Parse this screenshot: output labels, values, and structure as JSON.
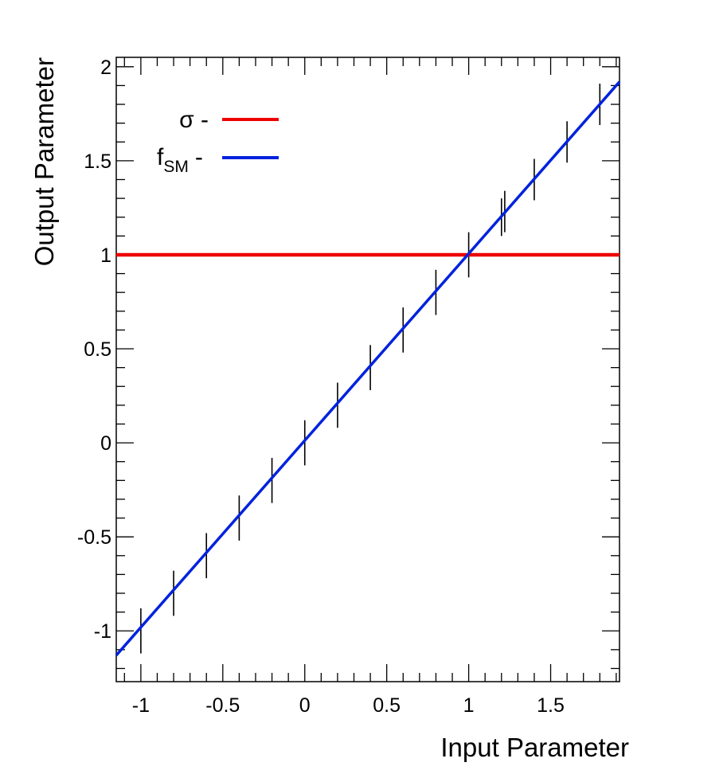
{
  "chart_data": {
    "type": "line",
    "xlabel": "Input Parameter",
    "ylabel": "Output Parameter",
    "xlim": [
      -1.15,
      1.92
    ],
    "ylim": [
      -1.27,
      2.05
    ],
    "x_ticks": [
      -1,
      -0.5,
      0,
      0.5,
      1,
      1.5
    ],
    "x_tick_labels": [
      "-1",
      "-0.5",
      "0",
      "0.5",
      "1",
      "1.5"
    ],
    "y_ticks": [
      -1,
      -0.5,
      0,
      0.5,
      1,
      1.5,
      2
    ],
    "y_tick_labels": [
      "-1",
      "-0.5",
      "0",
      "0.5",
      "1",
      "1.5",
      "2"
    ],
    "grid": false,
    "legend_position": "top-left",
    "series": [
      {
        "name": "σ",
        "color": "#ee0000",
        "x": [
          -1.15,
          1.92
        ],
        "y": [
          1.0,
          1.0
        ]
      },
      {
        "name_main": "f",
        "name_sub": "SM",
        "color": "#0022dd",
        "x": [
          -1.15,
          1.92
        ],
        "y": [
          -1.13,
          1.92
        ]
      }
    ],
    "error_bars": {
      "color": "#000000",
      "points": [
        {
          "x": -1.0,
          "y": -1.0,
          "err": 0.12
        },
        {
          "x": -0.8,
          "y": -0.8,
          "err": 0.12
        },
        {
          "x": -0.6,
          "y": -0.6,
          "err": 0.12
        },
        {
          "x": -0.4,
          "y": -0.4,
          "err": 0.12
        },
        {
          "x": -0.2,
          "y": -0.2,
          "err": 0.12
        },
        {
          "x": 0.0,
          "y": 0.0,
          "err": 0.12
        },
        {
          "x": 0.2,
          "y": 0.2,
          "err": 0.12
        },
        {
          "x": 0.4,
          "y": 0.4,
          "err": 0.12
        },
        {
          "x": 0.6,
          "y": 0.6,
          "err": 0.12
        },
        {
          "x": 0.8,
          "y": 0.8,
          "err": 0.12
        },
        {
          "x": 1.0,
          "y": 1.0,
          "err": 0.12
        },
        {
          "x": 1.2,
          "y": 1.2,
          "err": 0.1
        },
        {
          "x": 1.22,
          "y": 1.23,
          "err": 0.11
        },
        {
          "x": 1.4,
          "y": 1.4,
          "err": 0.11
        },
        {
          "x": 1.6,
          "y": 1.6,
          "err": 0.11
        },
        {
          "x": 1.8,
          "y": 1.8,
          "err": 0.11
        }
      ]
    },
    "legend": {
      "entries": [
        {
          "label": "σ -",
          "color": "#ee0000"
        },
        {
          "label_main": "f",
          "label_sub": "SM",
          "label_suffix": "-",
          "color": "#0022dd"
        }
      ]
    }
  }
}
